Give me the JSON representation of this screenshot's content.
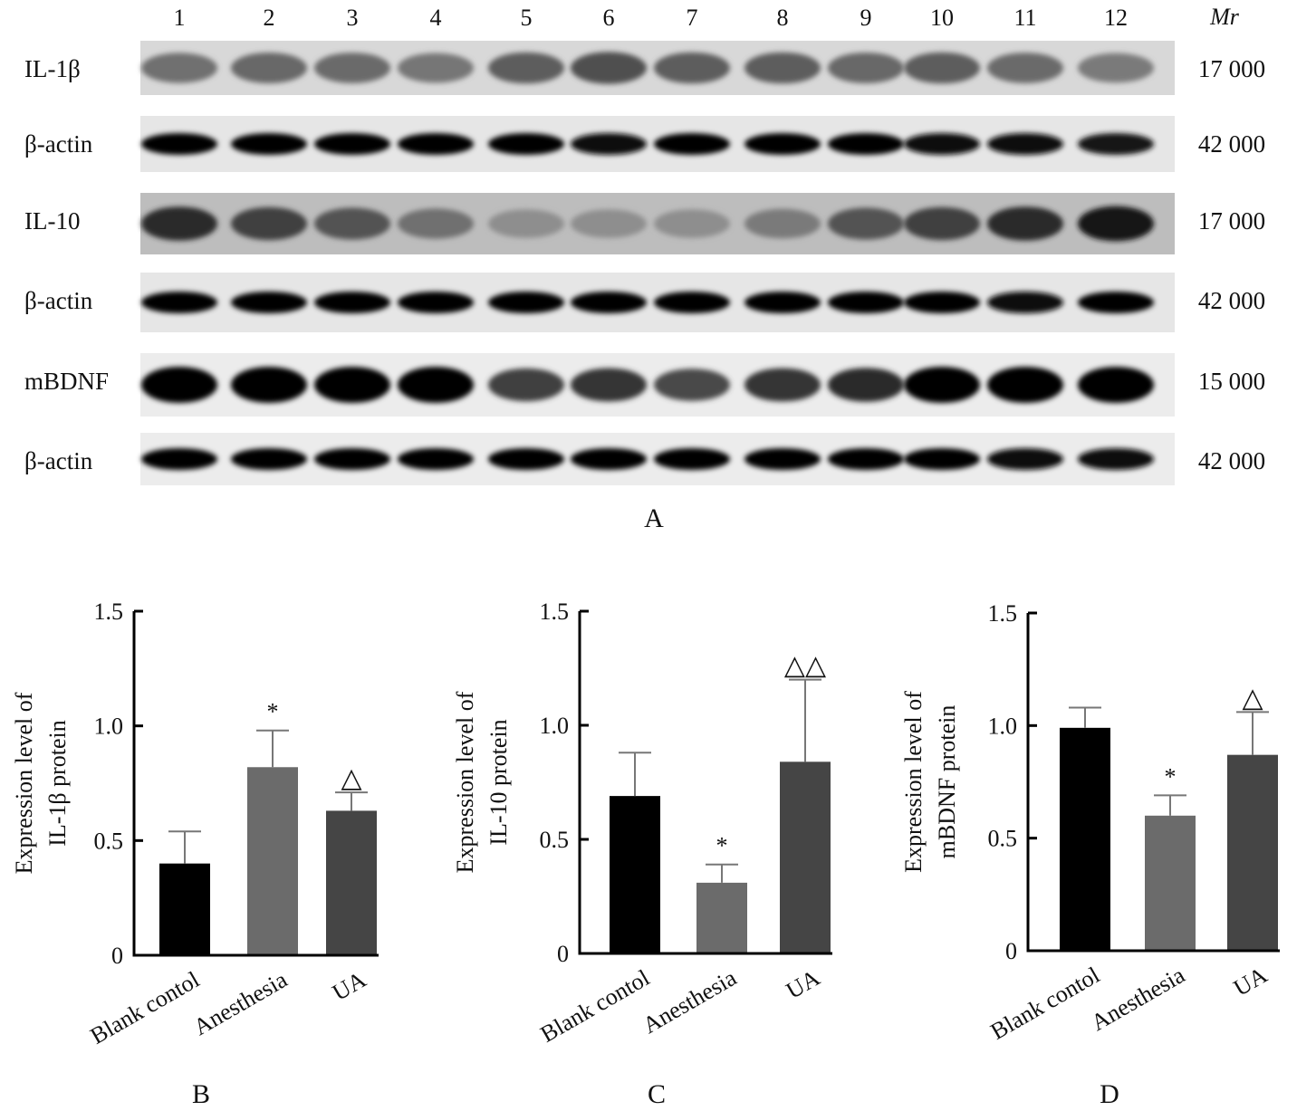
{
  "blot": {
    "lane_numbers": [
      "1",
      "2",
      "3",
      "4",
      "5",
      "6",
      "7",
      "8",
      "9",
      "10",
      "11",
      "12"
    ],
    "mr_header": "Mr",
    "rows": [
      {
        "label": "IL-1β",
        "mr": "17 000",
        "intensity": [
          0.45,
          0.5,
          0.48,
          0.42,
          0.55,
          0.62,
          0.55,
          0.55,
          0.5,
          0.55,
          0.48,
          0.4
        ]
      },
      {
        "label": "β-actin",
        "mr": "42 000",
        "intensity": [
          1,
          1,
          1,
          1,
          1,
          0.95,
          1,
          1,
          1,
          0.95,
          0.95,
          0.9
        ]
      },
      {
        "label": "IL-10",
        "mr": "17 000",
        "intensity": [
          0.8,
          0.7,
          0.6,
          0.45,
          0.3,
          0.3,
          0.3,
          0.4,
          0.6,
          0.7,
          0.8,
          0.9
        ]
      },
      {
        "label": "β-actin",
        "mr": "42 000",
        "intensity": [
          1,
          1,
          1,
          1,
          1,
          1,
          1,
          1,
          1,
          1,
          0.95,
          1
        ]
      },
      {
        "label": "mBDNF",
        "mr": "15 000",
        "intensity": [
          1,
          1,
          1,
          1,
          0.7,
          0.75,
          0.65,
          0.75,
          0.8,
          1,
          1,
          1
        ]
      },
      {
        "label": "β-actin",
        "mr": "42 000",
        "intensity": [
          1,
          1,
          1,
          1,
          1,
          1,
          1,
          1,
          1,
          1,
          0.95,
          0.95
        ]
      }
    ],
    "panel_label": "A"
  },
  "chart_data": [
    {
      "type": "bar",
      "panel_label": "B",
      "categories": [
        "Blank contol",
        "Anesthesia",
        "UA"
      ],
      "values": [
        0.4,
        0.82,
        0.63
      ],
      "errors": [
        0.14,
        0.16,
        0.08
      ],
      "annotations": [
        "",
        "*",
        "△"
      ],
      "colors": [
        "#000000",
        "#6b6b6b",
        "#454545"
      ],
      "ylabel_lines": [
        "Expression level of",
        "IL-1β protein"
      ],
      "yticks": [
        "0",
        "0.5",
        "1.0",
        "1.5"
      ],
      "ylim": [
        0,
        1.5
      ]
    },
    {
      "type": "bar",
      "panel_label": "C",
      "categories": [
        "Blank contol",
        "Anesthesia",
        "UA"
      ],
      "values": [
        0.69,
        0.31,
        0.84
      ],
      "errors": [
        0.19,
        0.08,
        0.36
      ],
      "annotations": [
        "",
        "*",
        "△△"
      ],
      "colors": [
        "#000000",
        "#6b6b6b",
        "#454545"
      ],
      "ylabel_lines": [
        "Expression level of",
        "IL-10 protein"
      ],
      "yticks": [
        "0",
        "0.5",
        "1.0",
        "1.5"
      ],
      "ylim": [
        0,
        1.5
      ]
    },
    {
      "type": "bar",
      "panel_label": "D",
      "categories": [
        "Blank contol",
        "Anesthesia",
        "UA"
      ],
      "values": [
        0.99,
        0.6,
        0.87
      ],
      "errors": [
        0.09,
        0.09,
        0.19
      ],
      "annotations": [
        "",
        "*",
        "△"
      ],
      "colors": [
        "#000000",
        "#6b6b6b",
        "#454545"
      ],
      "ylabel_lines": [
        "Expression level of",
        "mBDNF protein"
      ],
      "yticks": [
        "0",
        "0.5",
        "1.0",
        "1.5"
      ],
      "ylim": [
        0,
        1.5
      ]
    }
  ]
}
